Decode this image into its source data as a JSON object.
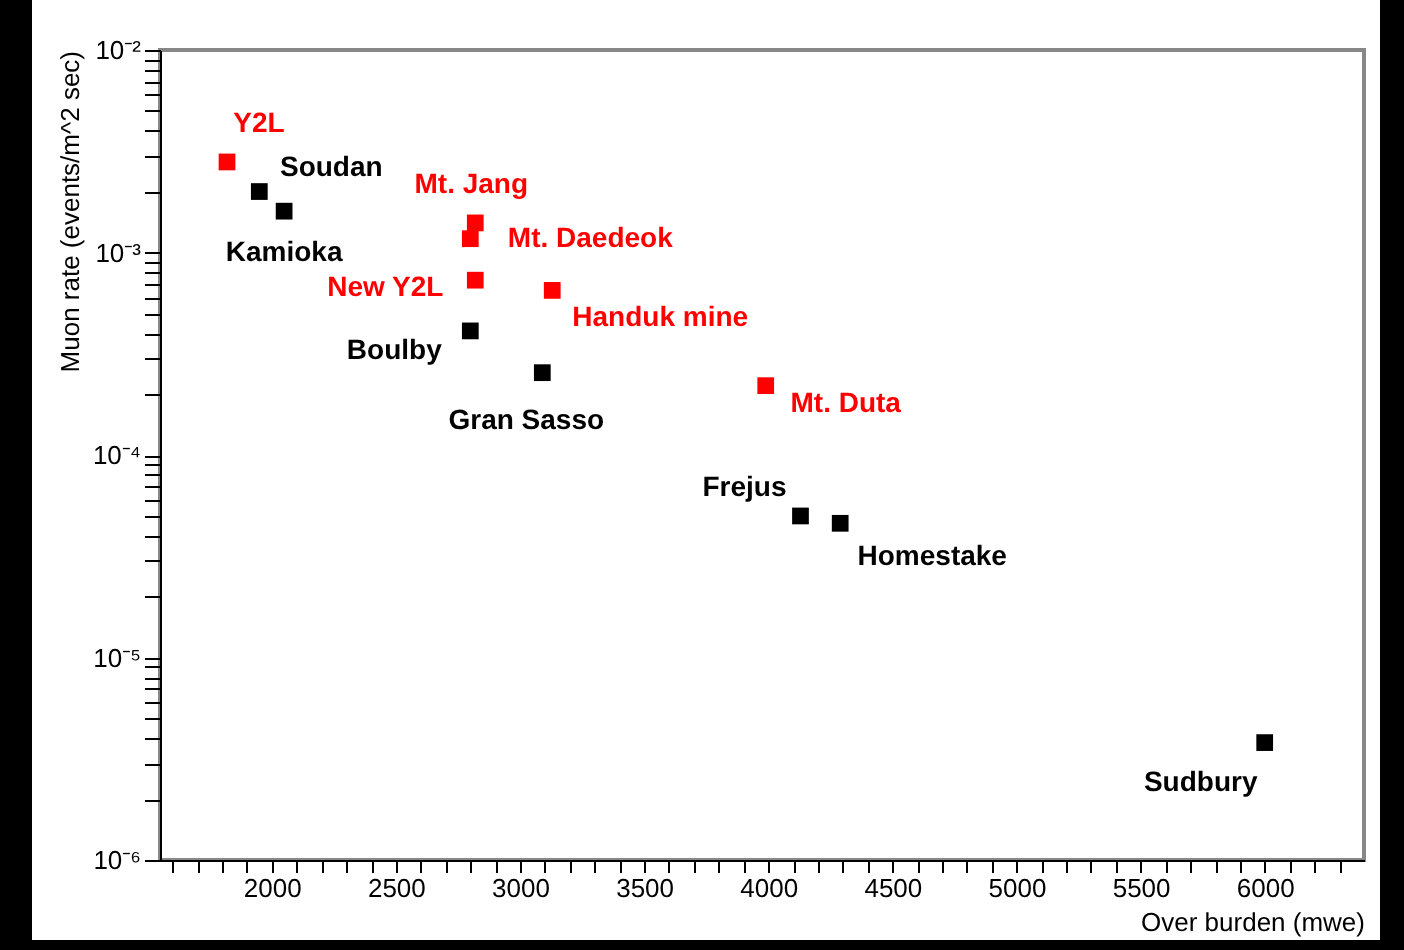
{
  "chart_data": {
    "type": "scatter",
    "xlabel": "Over burden (mwe)",
    "ylabel": "Muon rate (events/m^2 sec)",
    "log": "y",
    "grid": false,
    "marker": "square",
    "xlim": [
      1550,
      6400
    ],
    "ylim": [
      1e-06,
      0.01
    ],
    "xticks": [
      {
        "value": 1600,
        "label": null
      },
      {
        "value": 1700,
        "label": null
      },
      {
        "value": 1800,
        "label": null
      },
      {
        "value": 1900,
        "label": null
      },
      2000,
      {
        "value": 2100,
        "label": null
      },
      {
        "value": 2200,
        "label": null
      },
      {
        "value": 2300,
        "label": null
      },
      {
        "value": 2400,
        "label": null
      },
      2500,
      {
        "value": 2600,
        "label": null
      },
      {
        "value": 2700,
        "label": null
      },
      {
        "value": 2800,
        "label": null
      },
      {
        "value": 2900,
        "label": null
      },
      3000,
      {
        "value": 3100,
        "label": null
      },
      {
        "value": 3200,
        "label": null
      },
      {
        "value": 3300,
        "label": null
      },
      {
        "value": 3400,
        "label": null
      },
      3500,
      {
        "value": 3600,
        "label": null
      },
      {
        "value": 3700,
        "label": null
      },
      {
        "value": 3800,
        "label": null
      },
      {
        "value": 3900,
        "label": null
      },
      4000,
      {
        "value": 4100,
        "label": null
      },
      {
        "value": 4200,
        "label": null
      },
      {
        "value": 4300,
        "label": null
      },
      {
        "value": 4400,
        "label": null
      },
      4500,
      {
        "value": 4600,
        "label": null
      },
      {
        "value": 4700,
        "label": null
      },
      {
        "value": 4800,
        "label": null
      },
      {
        "value": 4900,
        "label": null
      },
      5000,
      {
        "value": 5100,
        "label": null
      },
      {
        "value": 5200,
        "label": null
      },
      {
        "value": 5300,
        "label": null
      },
      {
        "value": 5400,
        "label": null
      },
      5500,
      {
        "value": 5600,
        "label": null
      },
      {
        "value": 5700,
        "label": null
      },
      {
        "value": 5800,
        "label": null
      },
      {
        "value": 5900,
        "label": null
      },
      6000,
      {
        "value": 6100,
        "label": null
      },
      {
        "value": 6200,
        "label": null
      },
      {
        "value": 6300,
        "label": null
      }
    ],
    "yticks": [
      {
        "value": 1e-06,
        "label": "10⁻⁶"
      },
      {
        "value": 2e-06,
        "label": null
      },
      {
        "value": 3e-06,
        "label": null
      },
      {
        "value": 4e-06,
        "label": null
      },
      {
        "value": 5e-06,
        "label": null
      },
      {
        "value": 6e-06,
        "label": null
      },
      {
        "value": 7e-06,
        "label": null
      },
      {
        "value": 8e-06,
        "label": null
      },
      {
        "value": 9e-06,
        "label": null
      },
      {
        "value": 1e-05,
        "label": "10⁻⁵"
      },
      {
        "value": 2e-05,
        "label": null
      },
      {
        "value": 3e-05,
        "label": null
      },
      {
        "value": 4e-05,
        "label": null
      },
      {
        "value": 5e-05,
        "label": null
      },
      {
        "value": 6e-05,
        "label": null
      },
      {
        "value": 7e-05,
        "label": null
      },
      {
        "value": 8e-05,
        "label": null
      },
      {
        "value": 9e-05,
        "label": null
      },
      {
        "value": 0.0001,
        "label": "10⁻⁴"
      },
      {
        "value": 0.0002,
        "label": null
      },
      {
        "value": 0.0003,
        "label": null
      },
      {
        "value": 0.0004,
        "label": null
      },
      {
        "value": 0.0005,
        "label": null
      },
      {
        "value": 0.0006,
        "label": null
      },
      {
        "value": 0.0007,
        "label": null
      },
      {
        "value": 0.0008,
        "label": null
      },
      {
        "value": 0.0009,
        "label": null
      },
      {
        "value": 0.001,
        "label": "10⁻³"
      },
      {
        "value": 0.002,
        "label": null
      },
      {
        "value": 0.003,
        "label": null
      },
      {
        "value": 0.004,
        "label": null
      },
      {
        "value": 0.005,
        "label": null
      },
      {
        "value": 0.006,
        "label": null
      },
      {
        "value": 0.007,
        "label": null
      },
      {
        "value": 0.008,
        "label": null
      },
      {
        "value": 0.009,
        "label": null
      },
      {
        "value": 0.01,
        "label": "10⁻²"
      }
    ],
    "series": [
      {
        "color": "#ff0000",
        "x": [
          1820,
          2820,
          2800,
          2820,
          3130,
          3990
        ],
        "values": [
          0.0028,
          0.0014,
          0.00117,
          0.00073,
          0.00065,
          0.00022
        ]
      },
      {
        "color": "#000000",
        "x": [
          1950,
          2050,
          2800,
          3090,
          4130,
          4290,
          6000
        ],
        "values": [
          0.002,
          0.0016,
          0.00041,
          0.000255,
          5e-05,
          4.6e-05,
          3.8e-06
        ]
      }
    ],
    "annotations": [
      {
        "text": "Y2L",
        "x": 1820,
        "y": 0.0028
      },
      {
        "text": "Soudan",
        "x": 1950,
        "y": 0.002
      },
      {
        "text": "Kamioka",
        "x": 2050,
        "y": 0.0016
      },
      {
        "text": "Mt. Jang",
        "x": 2820,
        "y": 0.0014
      },
      {
        "text": "Mt. Daedeok",
        "x": 2800,
        "y": 0.00117
      },
      {
        "text": "New Y2L",
        "x": 2820,
        "y": 0.00073
      },
      {
        "text": "Handuk mine",
        "x": 3130,
        "y": 0.00065
      },
      {
        "text": "Boulby",
        "x": 2800,
        "y": 0.00041
      },
      {
        "text": "Gran Sasso",
        "x": 3090,
        "y": 0.000255
      },
      {
        "text": "Mt. Duta",
        "x": 3990,
        "y": 0.00022
      },
      {
        "text": "Frejus",
        "x": 4130,
        "y": 5e-05
      },
      {
        "text": "Homestake",
        "x": 4290,
        "y": 4.6e-05
      },
      {
        "text": "Sudbury",
        "x": 6000,
        "y": 3.8e-06
      }
    ]
  }
}
